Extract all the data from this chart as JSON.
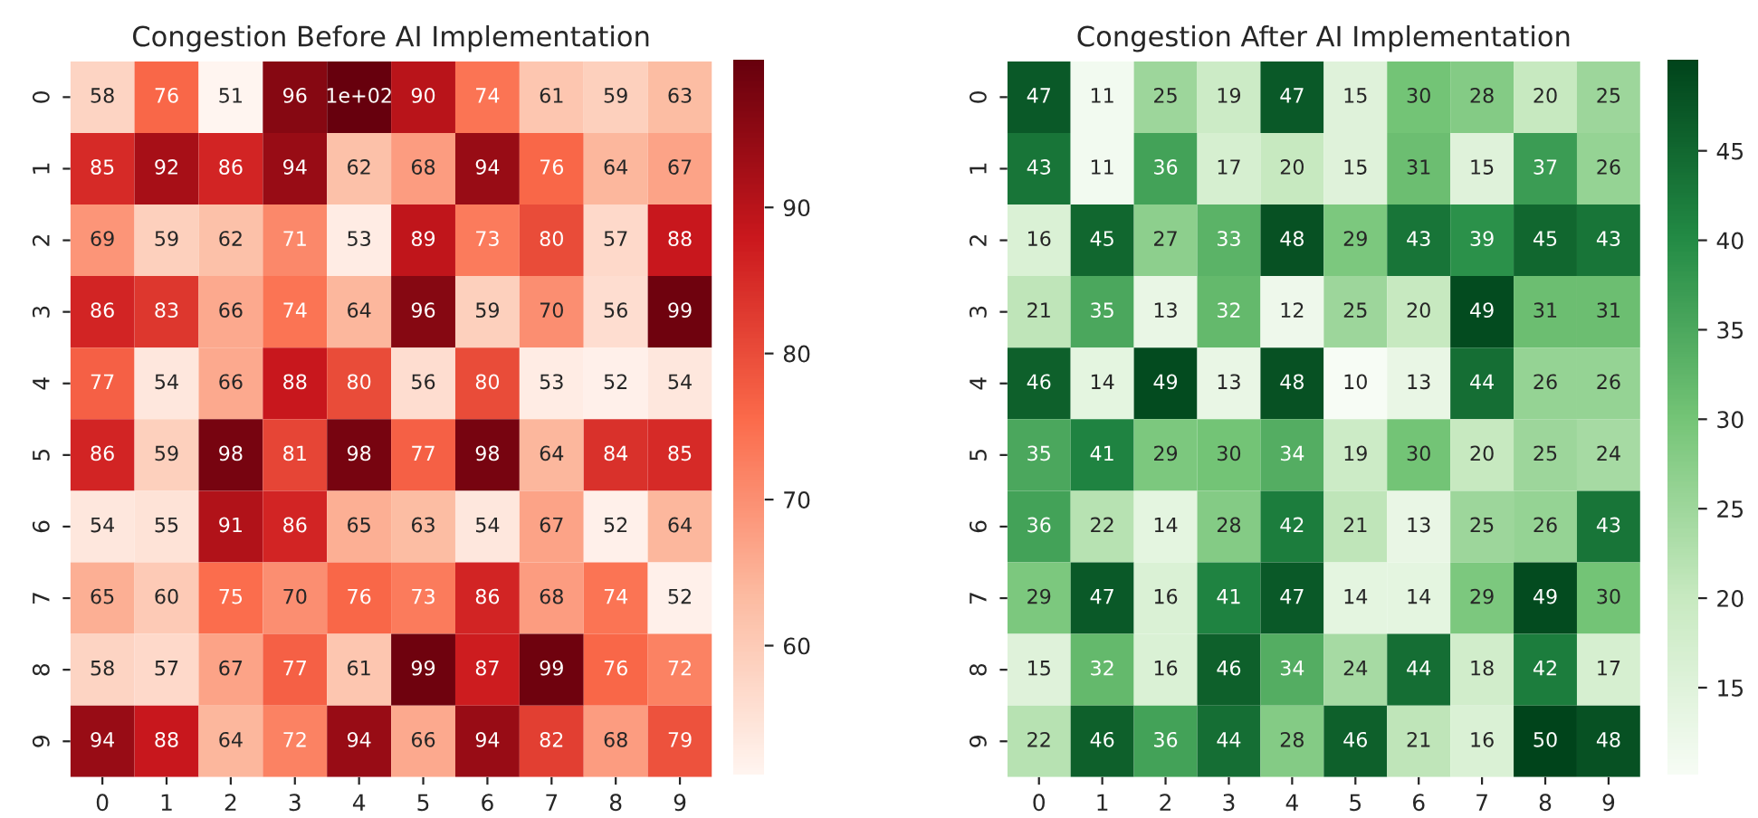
{
  "chart_data": [
    {
      "type": "heatmap",
      "title": "Congestion Before AI Implementation",
      "colors": [
        "#fff5f0",
        "#fcbba1",
        "#fb6a4a",
        "#cb181d",
        "#67000d"
      ],
      "categories": [
        "0",
        "1",
        "2",
        "3",
        "4",
        "5",
        "6",
        "7",
        "8",
        "9"
      ],
      "y_categories": [
        "0",
        "1",
        "2",
        "3",
        "4",
        "5",
        "6",
        "7",
        "8",
        "9"
      ],
      "cells": [
        [
          58,
          76,
          51,
          96,
          100,
          90,
          74,
          61,
          59,
          63
        ],
        [
          85,
          92,
          86,
          94,
          62,
          68,
          94,
          76,
          64,
          67
        ],
        [
          69,
          59,
          62,
          71,
          53,
          89,
          73,
          80,
          57,
          88
        ],
        [
          86,
          83,
          66,
          74,
          64,
          96,
          59,
          70,
          56,
          99
        ],
        [
          77,
          54,
          66,
          88,
          80,
          56,
          80,
          53,
          52,
          54
        ],
        [
          86,
          59,
          98,
          81,
          98,
          77,
          98,
          64,
          84,
          85
        ],
        [
          54,
          55,
          91,
          86,
          65,
          63,
          54,
          67,
          52,
          64
        ],
        [
          65,
          60,
          75,
          70,
          76,
          73,
          86,
          68,
          74,
          52
        ],
        [
          58,
          57,
          67,
          77,
          61,
          99,
          87,
          99,
          76,
          72
        ],
        [
          94,
          88,
          64,
          72,
          94,
          66,
          94,
          82,
          68,
          79
        ]
      ],
      "cell_labels": [
        [
          "58",
          "76",
          "51",
          "96",
          "1e+02",
          "90",
          "74",
          "61",
          "59",
          "63"
        ],
        [
          "85",
          "92",
          "86",
          "94",
          "62",
          "68",
          "94",
          "76",
          "64",
          "67"
        ],
        [
          "69",
          "59",
          "62",
          "71",
          "53",
          "89",
          "73",
          "80",
          "57",
          "88"
        ],
        [
          "86",
          "83",
          "66",
          "74",
          "64",
          "96",
          "59",
          "70",
          "56",
          "99"
        ],
        [
          "77",
          "54",
          "66",
          "88",
          "80",
          "56",
          "80",
          "53",
          "52",
          "54"
        ],
        [
          "86",
          "59",
          "98",
          "81",
          "98",
          "77",
          "98",
          "64",
          "84",
          "85"
        ],
        [
          "54",
          "55",
          "91",
          "86",
          "65",
          "63",
          "54",
          "67",
          "52",
          "64"
        ],
        [
          "65",
          "60",
          "75",
          "70",
          "76",
          "73",
          "86",
          "68",
          "74",
          "52"
        ],
        [
          "58",
          "57",
          "67",
          "77",
          "61",
          "99",
          "87",
          "99",
          "76",
          "72"
        ],
        [
          "94",
          "88",
          "64",
          "72",
          "94",
          "66",
          "94",
          "82",
          "68",
          "79"
        ]
      ],
      "clim": [
        51,
        100
      ],
      "cticks": [
        60,
        70,
        80,
        90
      ]
    },
    {
      "type": "heatmap",
      "title": "Congestion After AI Implementation",
      "colors": [
        "#f7fcf5",
        "#c7e9c0",
        "#74c476",
        "#238b45",
        "#00441b"
      ],
      "data_labels": true,
      "categories": [
        "0",
        "1",
        "2",
        "3",
        "4",
        "5",
        "6",
        "7",
        "8",
        "9"
      ],
      "y_categories": [
        "0",
        "1",
        "2",
        "3",
        "4",
        "5",
        "6",
        "7",
        "8",
        "9"
      ],
      "cells": [
        [
          47,
          11,
          25,
          19,
          47,
          15,
          30,
          28,
          20,
          25
        ],
        [
          43,
          11,
          36,
          17,
          20,
          15,
          31,
          15,
          37,
          26
        ],
        [
          16,
          45,
          27,
          33,
          48,
          29,
          43,
          39,
          45,
          43
        ],
        [
          21,
          35,
          13,
          32,
          12,
          25,
          20,
          49,
          31,
          31
        ],
        [
          46,
          14,
          49,
          13,
          48,
          10,
          13,
          44,
          26,
          26
        ],
        [
          35,
          41,
          29,
          30,
          34,
          19,
          30,
          20,
          25,
          24
        ],
        [
          36,
          22,
          14,
          28,
          42,
          21,
          13,
          25,
          26,
          43
        ],
        [
          29,
          47,
          16,
          41,
          47,
          14,
          14,
          29,
          49,
          30
        ],
        [
          15,
          32,
          16,
          46,
          34,
          24,
          44,
          18,
          42,
          17
        ],
        [
          22,
          46,
          36,
          44,
          28,
          46,
          21,
          16,
          50,
          48
        ]
      ],
      "clim": [
        10,
        50
      ],
      "cticks": [
        15,
        20,
        25,
        30,
        35,
        40,
        45
      ]
    }
  ]
}
